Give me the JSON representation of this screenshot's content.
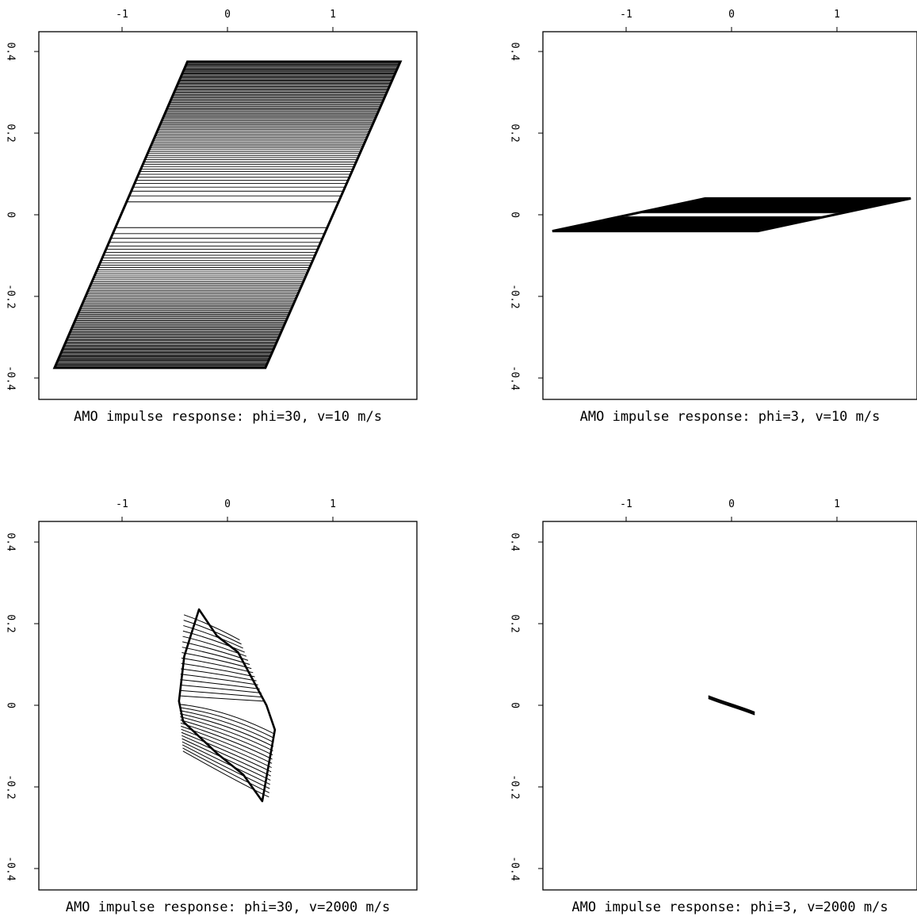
{
  "colors": {
    "ink": "#000000",
    "background": "#ffffff"
  },
  "chart_data": [
    {
      "type": "line",
      "title": "AMO impulse response: phi=30, v=10 m/s",
      "xlabel": "",
      "ylabel": "",
      "xlim": [
        -1.8,
        1.8
      ],
      "ylim": [
        -0.45,
        0.45
      ],
      "xticks": [
        -1,
        0,
        1
      ],
      "xtick_labels": [
        "-1",
        "0",
        "1"
      ],
      "yticks": [
        0.4,
        0.2,
        0,
        -0.2,
        -0.4
      ],
      "ytick_labels": [
        "0.4",
        "0.2",
        "0",
        "-0.2",
        "-0.4"
      ],
      "x_axis_position": "top",
      "y_axis_position": "left",
      "grid": false,
      "outline": [
        [
          -1.64,
          -0.375
        ],
        [
          -0.38,
          0.375
        ],
        [
          1.64,
          0.375
        ],
        [
          0.36,
          -0.375
        ]
      ],
      "contour_count": 90
    },
    {
      "type": "line",
      "title": "AMO impulse response: phi=3, v=10 m/s",
      "xlabel": "",
      "ylabel": "",
      "xlim": [
        -1.8,
        1.8
      ],
      "ylim": [
        -0.45,
        0.45
      ],
      "xticks": [
        -1,
        0,
        1
      ],
      "xtick_labels": [
        "-1",
        "0",
        "1"
      ],
      "yticks": [
        0.4,
        0.2,
        0,
        -0.2,
        -0.4
      ],
      "ytick_labels": [
        "0.4",
        "0.2",
        "0",
        "-0.2",
        "-0.4"
      ],
      "x_axis_position": "top",
      "y_axis_position": "left",
      "grid": false,
      "outline": [
        [
          -1.7,
          -0.04
        ],
        [
          -0.25,
          0.04
        ],
        [
          1.7,
          0.04
        ],
        [
          0.25,
          -0.04
        ]
      ],
      "contour_count": 55
    },
    {
      "type": "line",
      "title": "AMO impulse response: phi=30, v=2000 m/s",
      "xlabel": "",
      "ylabel": "",
      "xlim": [
        -1.8,
        1.8
      ],
      "ylim": [
        -0.45,
        0.45
      ],
      "xticks": [
        -1,
        0,
        1
      ],
      "xtick_labels": [
        "-1",
        "0",
        "1"
      ],
      "yticks": [
        0.4,
        0.2,
        0,
        -0.2,
        -0.4
      ],
      "ytick_labels": [
        "0.4",
        "0.2",
        "0",
        "-0.2",
        "-0.4"
      ],
      "x_axis_position": "top",
      "y_axis_position": "left",
      "grid": false,
      "outline": [
        [
          -0.27,
          0.235
        ],
        [
          -0.1,
          0.17
        ],
        [
          0.1,
          0.13
        ],
        [
          0.37,
          0.0
        ],
        [
          0.45,
          -0.06
        ],
        [
          0.33,
          -0.235
        ],
        [
          0.15,
          -0.17
        ],
        [
          -0.09,
          -0.12
        ],
        [
          -0.42,
          -0.04
        ],
        [
          -0.46,
          0.01
        ],
        [
          -0.41,
          0.12
        ]
      ],
      "contour_count": 16
    },
    {
      "type": "line",
      "title": "AMO impulse response: phi=3, v=2000 m/s",
      "xlabel": "",
      "ylabel": "",
      "xlim": [
        -1.8,
        1.8
      ],
      "ylim": [
        -0.45,
        0.45
      ],
      "xticks": [
        -1,
        0,
        1
      ],
      "xtick_labels": [
        "-1",
        "0",
        "1"
      ],
      "yticks": [
        0.4,
        0.2,
        0,
        -0.2,
        -0.4
      ],
      "ytick_labels": [
        "0.4",
        "0.2",
        "0",
        "-0.2",
        "-0.4"
      ],
      "x_axis_position": "top",
      "y_axis_position": "left",
      "grid": false,
      "segment": [
        [
          -0.22,
          0.02
        ],
        [
          0.22,
          -0.02
        ]
      ],
      "contour_count": 3
    }
  ]
}
